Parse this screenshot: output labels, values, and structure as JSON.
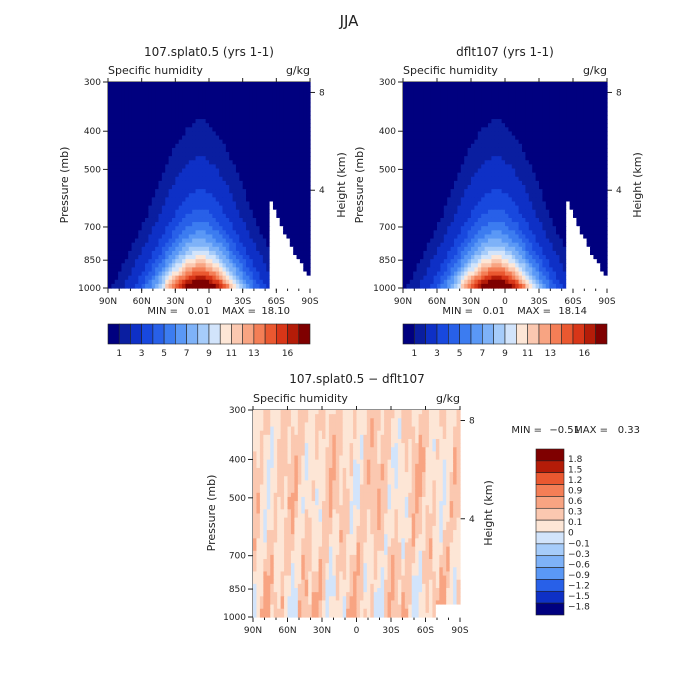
{
  "page_title": "JJA",
  "colors": {
    "humidity": [
      "#00007f",
      "#0a1ea0",
      "#0e30c6",
      "#1848de",
      "#2860e8",
      "#3c7cf0",
      "#5a98f6",
      "#7eb2f8",
      "#a6ccfa",
      "#d2e4fb",
      "#fde6d6",
      "#fbc8b0",
      "#f8a482",
      "#f47e56",
      "#ea5830",
      "#d83618",
      "#b41c08",
      "#7f0000"
    ],
    "difference": [
      "#00007f",
      "#0e30c6",
      "#2860e8",
      "#5a98f6",
      "#7eb2f8",
      "#a6ccfa",
      "#d2e4fb",
      "#fde6d6",
      "#fbc8b0",
      "#f8a482",
      "#f47e56",
      "#ea5830",
      "#b41c08",
      "#7f0000"
    ]
  },
  "chart_data": [
    {
      "type": "heatmap",
      "title": "107.splat0.5 (yrs 1-1)",
      "variable": "Specific humidity",
      "units": "g/kg",
      "ylabel": "Pressure (mb)",
      "y2label": "Height (km)",
      "x_ticks": [
        "90N",
        "60N",
        "30N",
        "0",
        "30S",
        "60S",
        "90S"
      ],
      "x_range": [
        90,
        -90
      ],
      "y_ticks": [
        300,
        400,
        500,
        700,
        850,
        1000
      ],
      "y_range": [
        1000,
        300
      ],
      "y_scale": "log",
      "height_ticks": [
        8,
        4
      ],
      "min_label": "MIN =",
      "min_value": "0.01",
      "max_label": "MAX =",
      "max_value": "18.10",
      "levels": [
        0.5,
        1,
        2,
        3,
        4,
        5,
        6,
        7,
        8,
        9,
        10,
        11,
        12,
        13,
        14,
        15,
        16
      ],
      "colorbar_labels": [
        "1",
        "3",
        "5",
        "7",
        "9",
        "11",
        "13",
        "16"
      ],
      "peak_value": 18.1,
      "peak_lat": 8,
      "legend": "bottom-horizontal"
    },
    {
      "type": "heatmap",
      "title": "dflt107 (yrs 1-1)",
      "variable": "Specific humidity",
      "units": "g/kg",
      "ylabel": "Pressure (mb)",
      "y2label": "Height (km)",
      "x_ticks": [
        "90N",
        "60N",
        "30N",
        "0",
        "30S",
        "60S",
        "90S"
      ],
      "x_range": [
        90,
        -90
      ],
      "y_ticks": [
        300,
        400,
        500,
        700,
        850,
        1000
      ],
      "y_range": [
        1000,
        300
      ],
      "y_scale": "log",
      "height_ticks": [
        8,
        4
      ],
      "min_label": "MIN =",
      "min_value": "0.01",
      "max_label": "MAX =",
      "max_value": "18.14",
      "levels": [
        0.5,
        1,
        2,
        3,
        4,
        5,
        6,
        7,
        8,
        9,
        10,
        11,
        12,
        13,
        14,
        15,
        16
      ],
      "colorbar_labels": [
        "1",
        "3",
        "5",
        "7",
        "9",
        "11",
        "13",
        "16"
      ],
      "peak_value": 18.14,
      "peak_lat": 8,
      "legend": "bottom-horizontal"
    },
    {
      "type": "heatmap",
      "title": "107.splat0.5 − dflt107",
      "variable": "Specific humidity",
      "units": "g/kg",
      "ylabel": "Pressure (mb)",
      "y2label": "Height (km)",
      "x_ticks": [
        "90N",
        "60N",
        "30N",
        "0",
        "30S",
        "60S",
        "90S"
      ],
      "x_range": [
        90,
        -90
      ],
      "y_ticks": [
        300,
        400,
        500,
        700,
        850,
        1000
      ],
      "y_range": [
        1000,
        300
      ],
      "y_scale": "log",
      "height_ticks": [
        8,
        4
      ],
      "min_label": "MIN =",
      "min_value": "−0.51",
      "max_label": "MAX =",
      "max_value": "0.33",
      "levels": [
        -1.8,
        -1.5,
        -1.2,
        -0.9,
        -0.6,
        -0.3,
        -0.1,
        0,
        0.1,
        0.3,
        0.6,
        0.9,
        1.2,
        1.5,
        1.8
      ],
      "colorbar_labels": [
        "1.8",
        "1.5",
        "1.2",
        "0.9",
        "0.6",
        "0.3",
        "0.1",
        "0",
        "−0.1",
        "−0.3",
        "−0.6",
        "−0.9",
        "−1.2",
        "−1.5",
        "−1.8"
      ],
      "legend": "right-vertical"
    }
  ]
}
